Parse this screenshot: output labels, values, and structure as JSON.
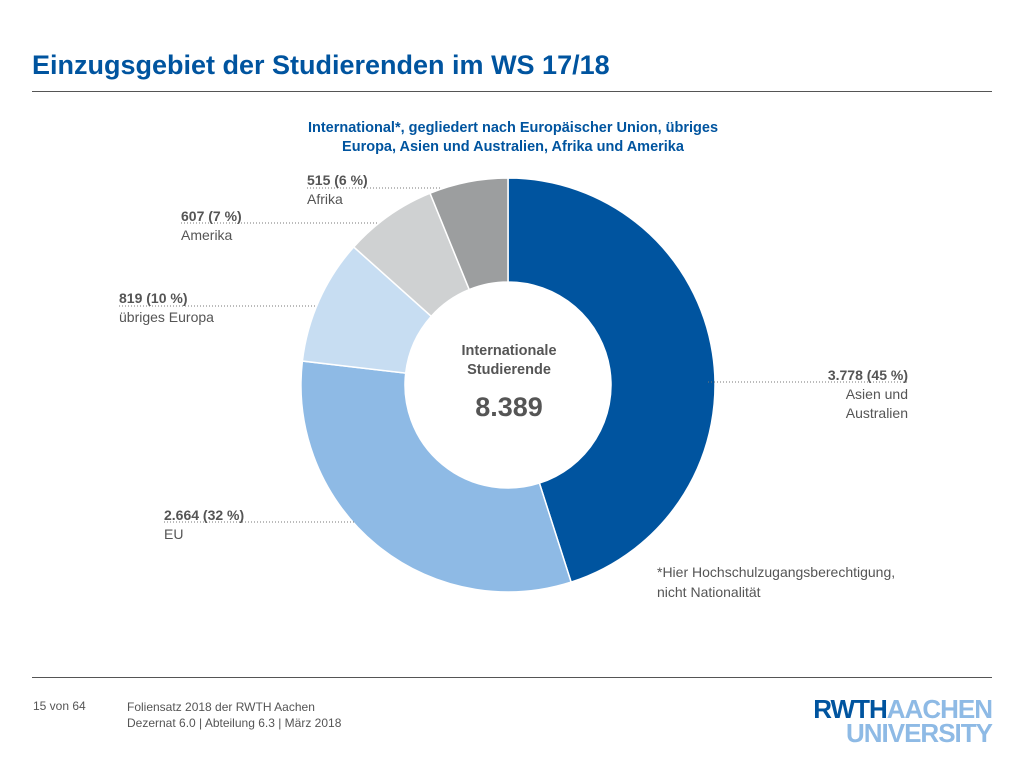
{
  "page": {
    "title": "Einzugsgebiet der Studierenden im WS 17/18",
    "footnote_line1": "*Hier Hochschulzugangsberechtigung,",
    "footnote_line2": "nicht Nationalität"
  },
  "footer": {
    "page_number": "15 von 64",
    "line1": "Foliensatz 2018 der RWTH Aachen",
    "line2": "Dezernat 6.0 | Abteilung 6.3 | März 2018"
  },
  "logo": {
    "part1": "RWTH",
    "part2": "AACHEN",
    "part3": "UNIVERSITY"
  },
  "chart_data": {
    "type": "pie",
    "donut": true,
    "title": "International*, gegliedert nach Europäischer Union, übriges Europa, Asien und Australien, Afrika und Amerika",
    "center_label_line1": "Internationale",
    "center_label_line2": "Studierende",
    "center_total": "8.389",
    "slices": [
      {
        "name": "Asien und Australien",
        "name_line1": "Asien und",
        "name_line2": "Australien",
        "value": 3778,
        "value_label": "3.778 (45 %)",
        "color": "#00549f"
      },
      {
        "name": "EU",
        "value": 2664,
        "value_label": "2.664 (32 %)",
        "color": "#8ebae5"
      },
      {
        "name": "übriges Europa",
        "value": 819,
        "value_label": "819 (10 %)",
        "color": "#c7ddf2"
      },
      {
        "name": "Amerika",
        "value": 607,
        "value_label": "607 (7 %)",
        "color": "#cfd1d2"
      },
      {
        "name": "Afrika",
        "value": 515,
        "value_label": "515 (6 %)",
        "color": "#9c9e9f"
      }
    ],
    "start_angle": "12 o'clock",
    "direction": "clockwise"
  }
}
